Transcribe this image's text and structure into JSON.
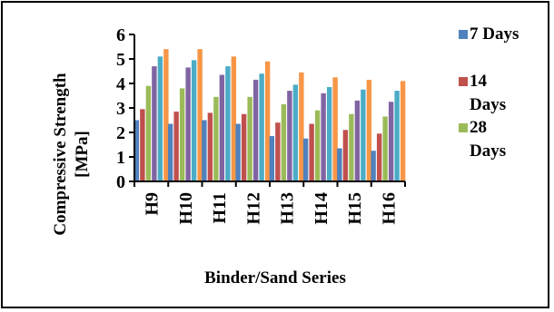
{
  "chart_data": {
    "type": "bar",
    "categories": [
      "H9",
      "H10",
      "H11",
      "H12",
      "H13",
      "H14",
      "H15",
      "H16"
    ],
    "series": [
      {
        "name": "7 Days",
        "color": "#4F81BD"
      },
      {
        "name": "14 Days",
        "color": "#C0504D"
      },
      {
        "name": "28 Days",
        "color": "#9BBB59"
      },
      {
        "name": "",
        "color": "#8064A2"
      },
      {
        "name": "",
        "color": "#4BACC6"
      },
      {
        "name": "",
        "color": "#F79646"
      }
    ],
    "values": [
      [
        2.5,
        2.35,
        2.5,
        2.35,
        1.85,
        1.75,
        1.35,
        1.25
      ],
      [
        2.95,
        2.85,
        2.8,
        2.75,
        2.4,
        2.35,
        2.1,
        1.95
      ],
      [
        3.9,
        3.8,
        3.45,
        3.45,
        3.15,
        2.9,
        2.75,
        2.65
      ],
      [
        4.7,
        4.65,
        4.35,
        4.15,
        3.7,
        3.6,
        3.3,
        3.25
      ],
      [
        5.1,
        4.95,
        4.7,
        4.4,
        3.95,
        3.85,
        3.75,
        3.7
      ],
      [
        5.4,
        5.4,
        5.1,
        4.9,
        4.45,
        4.25,
        4.15,
        4.1
      ]
    ],
    "ylabel_lines": [
      "Compressive Strength",
      "[MPa]"
    ],
    "xlabel": "Binder/Sand Series",
    "ylim": [
      0,
      6
    ],
    "yticks": [
      0,
      1,
      2,
      3,
      4,
      5,
      6
    ],
    "grid": false,
    "legend_position": "right"
  }
}
